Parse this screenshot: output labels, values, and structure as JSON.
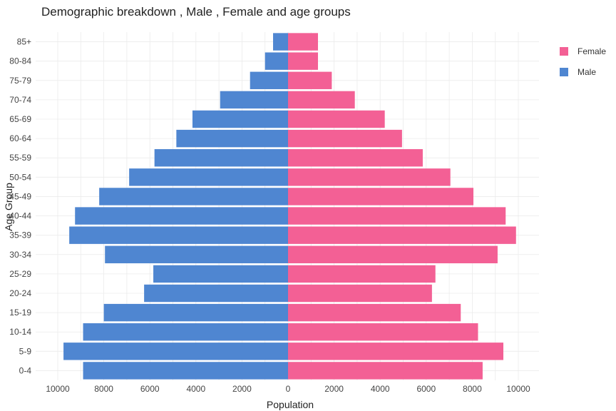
{
  "chart_data": {
    "type": "bar",
    "orientation": "horizontal",
    "title": "Demographic breakdown , Male , Female and age groups",
    "xlabel": "Population",
    "ylabel": "Age Group",
    "categories": [
      "0-4",
      "5-9",
      "10-14",
      "15-19",
      "20-24",
      "25-29",
      "30-34",
      "35-39",
      "40-44",
      "45-49",
      "50-54",
      "55-59",
      "60-64",
      "65-69",
      "70-74",
      "75-79",
      "80-84",
      "85+"
    ],
    "series": [
      {
        "name": "Male",
        "color": "#4f86d1",
        "values": [
          8900,
          9750,
          8900,
          8000,
          6250,
          5850,
          7950,
          9500,
          9250,
          8200,
          6900,
          5800,
          4850,
          4150,
          2950,
          1650,
          1000,
          650
        ]
      },
      {
        "name": "Female",
        "color": "#f36095",
        "values": [
          8450,
          9350,
          8250,
          7500,
          6250,
          6400,
          9100,
          9900,
          9450,
          8050,
          7050,
          5850,
          4950,
          4200,
          2900,
          1900,
          1300,
          1300
        ]
      }
    ],
    "x_ticks": [
      "10000",
      "8000",
      "6000",
      "4000",
      "2000",
      "0",
      "2000",
      "4000",
      "6000",
      "8000",
      "10000"
    ],
    "xlim": [
      -10500,
      10500
    ],
    "grid": true,
    "legend": {
      "placement": "top-right",
      "order": [
        "Female",
        "Male"
      ]
    }
  }
}
